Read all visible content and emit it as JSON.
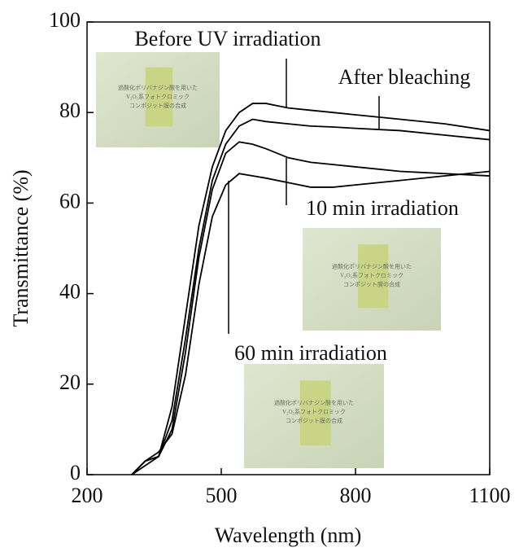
{
  "chart_data": {
    "type": "line",
    "xlabel": "Wavelength (nm)",
    "ylabel": "Transmittance (%)",
    "xlim": [
      200,
      1100
    ],
    "xticks": [
      200,
      500,
      800,
      1100
    ],
    "ylim": [
      0,
      100
    ],
    "yticks": [
      0,
      20,
      40,
      60,
      80,
      100
    ],
    "x": [
      300,
      330,
      360,
      390,
      420,
      450,
      480,
      510,
      540,
      570,
      600,
      650,
      700,
      750,
      800,
      900,
      1000,
      1100
    ],
    "series": [
      {
        "name": "Before UV irradiation",
        "color": "#000000",
        "values": [
          0,
          3,
          4,
          15,
          35,
          55,
          68,
          76,
          80,
          82,
          82,
          81,
          80.5,
          80,
          79.5,
          78.5,
          77.5,
          76
        ]
      },
      {
        "name": "After bleaching",
        "color": "#000000",
        "values": [
          0,
          3,
          4,
          12,
          30,
          50,
          65,
          73,
          77,
          78.5,
          78,
          77.5,
          77,
          76.8,
          76.5,
          76,
          75,
          74
        ]
      },
      {
        "name": "10 min irradiation",
        "color": "#000000",
        "values": [
          0,
          2,
          4,
          10,
          27,
          48,
          63,
          71,
          73.5,
          73,
          72,
          70,
          69,
          68.5,
          68,
          67,
          66.5,
          66
        ]
      },
      {
        "name": "60 min irradiation",
        "color": "#000000",
        "values": [
          0,
          3,
          5,
          9,
          22,
          42,
          57,
          64,
          66.5,
          66,
          65.5,
          64.5,
          63.5,
          63.5,
          64,
          65,
          66,
          67
        ]
      }
    ],
    "photo_text": [
      "過酸化ポリバナジン酸を用いた",
      "V₂O₅系フォトクロミック",
      "コンポジット膜の合成"
    ]
  }
}
